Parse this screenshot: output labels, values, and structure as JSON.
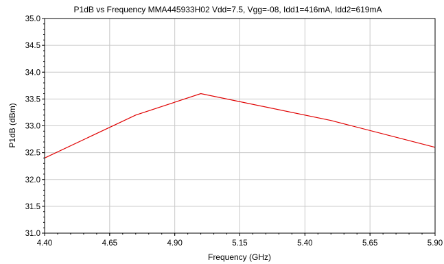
{
  "chart_data": {
    "type": "line",
    "title": "P1dB vs Frequency MMA445933H02 Vdd=7.5, Vgg=-08, Idd1=416mA, Idd2=619mA",
    "xlabel": "Frequency (GHz)",
    "ylabel": "P1dB (dBm)",
    "xlim": [
      4.4,
      5.9
    ],
    "ylim": [
      31.0,
      35.0
    ],
    "x_ticks": [
      "4.40",
      "4.65",
      "4.90",
      "5.15",
      "5.40",
      "5.65",
      "5.90"
    ],
    "y_ticks": [
      "31.0",
      "31.5",
      "32.0",
      "32.5",
      "33.0",
      "33.5",
      "34.0",
      "34.5",
      "35.0"
    ],
    "grid": true,
    "legend": "none",
    "series": [
      {
        "color": "#e00000",
        "x": [
          4.4,
          4.75,
          5.0,
          5.5,
          5.9
        ],
        "y": [
          32.4,
          33.2,
          33.6,
          33.1,
          32.6
        ]
      }
    ]
  }
}
